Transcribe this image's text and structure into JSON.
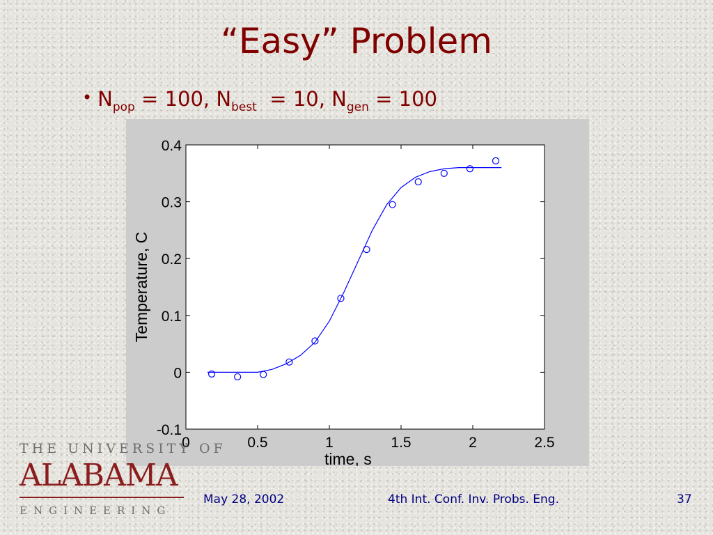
{
  "slide": {
    "title": "“Easy” Problem",
    "bullet": {
      "n_pop_label": "N",
      "n_pop_sub": "pop",
      "n_pop_value": " = 100, ",
      "n_best_label": "N",
      "n_best_sub": "best",
      "n_best_value": "  = 10, ",
      "n_gen_label": "N",
      "n_gen_sub": "gen",
      "n_gen_value": " = 100"
    }
  },
  "logo": {
    "top": "THE UNIVERSITY OF",
    "main": "ALABAMA",
    "bottom": "ENGINEERING"
  },
  "footer": {
    "date": "May 28, 2002",
    "conference": "4th Int. Conf. Inv. Probs. Eng.",
    "page_number": "37"
  },
  "colors": {
    "title": "#800000",
    "footer": "#000080",
    "series": "#0000ff",
    "figure_bg": "#cccccc"
  },
  "chart_data": {
    "type": "line",
    "title": "",
    "xlabel": "time, s",
    "ylabel": "Temperature, C",
    "xlim": [
      0,
      2.5
    ],
    "ylim": [
      -0.1,
      0.4
    ],
    "xticks": [
      0,
      0.5,
      1,
      1.5,
      2,
      2.5
    ],
    "xtick_labels": [
      "0",
      "0.5",
      "1",
      "1.5",
      "2",
      "2.5"
    ],
    "yticks": [
      -0.1,
      0,
      0.1,
      0.2,
      0.3,
      0.4
    ],
    "ytick_labels": [
      "-0.1",
      "0",
      "0.1",
      "0.2",
      "0.3",
      "0.4"
    ],
    "grid": false,
    "legend": "none",
    "series": [
      {
        "kind": "line",
        "x": [
          0.15,
          0.3,
          0.5,
          0.6,
          0.7,
          0.8,
          0.9,
          1.0,
          1.1,
          1.2,
          1.3,
          1.4,
          1.5,
          1.6,
          1.7,
          1.8,
          1.9,
          2.0,
          2.1,
          2.2
        ],
        "y": [
          0.0,
          0.0,
          0.0,
          0.005,
          0.015,
          0.03,
          0.053,
          0.09,
          0.14,
          0.195,
          0.25,
          0.295,
          0.325,
          0.343,
          0.353,
          0.358,
          0.36,
          0.36,
          0.36,
          0.36
        ]
      },
      {
        "kind": "scatter",
        "marker": "circle",
        "x": [
          0.18,
          0.36,
          0.54,
          0.72,
          0.9,
          1.08,
          1.26,
          1.44,
          1.62,
          1.8,
          1.98,
          2.16
        ],
        "y": [
          -0.003,
          -0.008,
          -0.004,
          0.018,
          0.055,
          0.13,
          0.216,
          0.295,
          0.335,
          0.35,
          0.358,
          0.372
        ]
      }
    ]
  }
}
